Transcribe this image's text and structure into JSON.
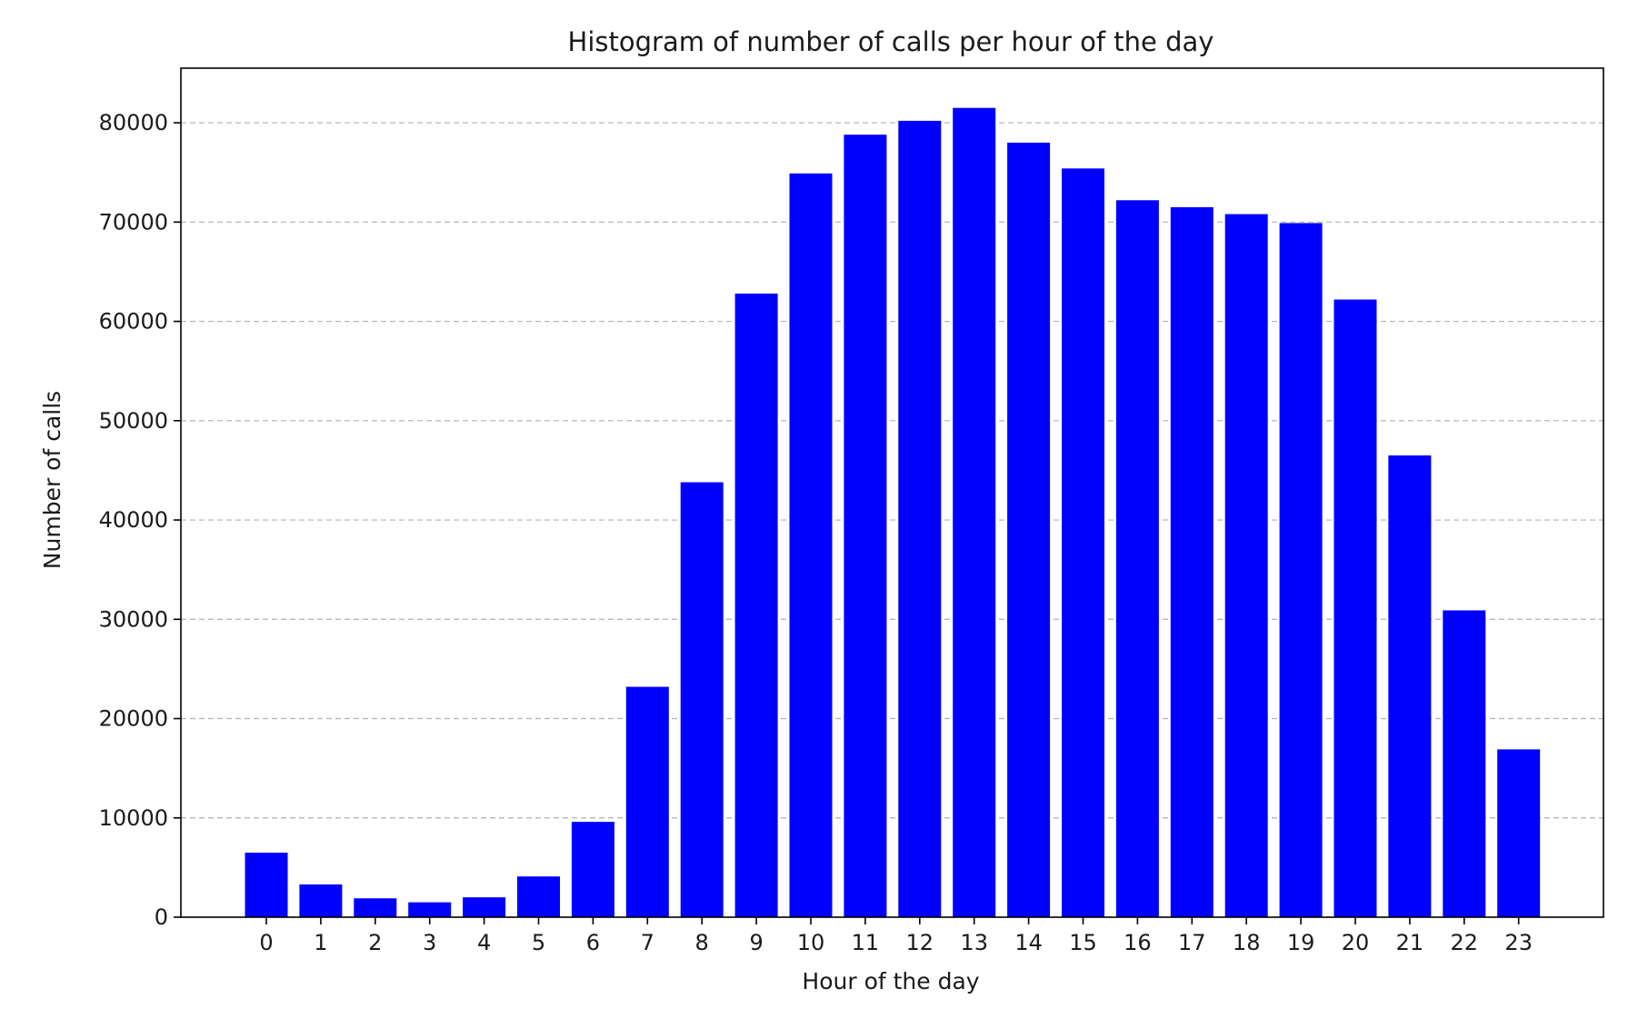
{
  "chart_data": {
    "type": "bar",
    "title": "Histogram of number of calls per hour of the day",
    "xlabel": "Hour of the day",
    "ylabel": "Number of calls",
    "categories": [
      "0",
      "1",
      "2",
      "3",
      "4",
      "5",
      "6",
      "7",
      "8",
      "9",
      "10",
      "11",
      "12",
      "13",
      "14",
      "15",
      "16",
      "17",
      "18",
      "19",
      "20",
      "21",
      "22",
      "23"
    ],
    "values": [
      6500,
      3300,
      1900,
      1500,
      2000,
      4100,
      9600,
      23200,
      43800,
      62800,
      74900,
      78800,
      80200,
      81500,
      78000,
      75400,
      72200,
      71500,
      70800,
      69900,
      62200,
      46500,
      30900,
      16900
    ],
    "ylim": [
      0,
      85500
    ],
    "yticks": [
      0,
      10000,
      20000,
      30000,
      40000,
      50000,
      60000,
      70000,
      80000
    ],
    "ytick_labels": [
      "0",
      "10000",
      "20000",
      "30000",
      "40000",
      "50000",
      "60000",
      "70000",
      "80000"
    ],
    "grid": "y-dashed",
    "legend": "none",
    "bar_color": "#0000ff"
  }
}
